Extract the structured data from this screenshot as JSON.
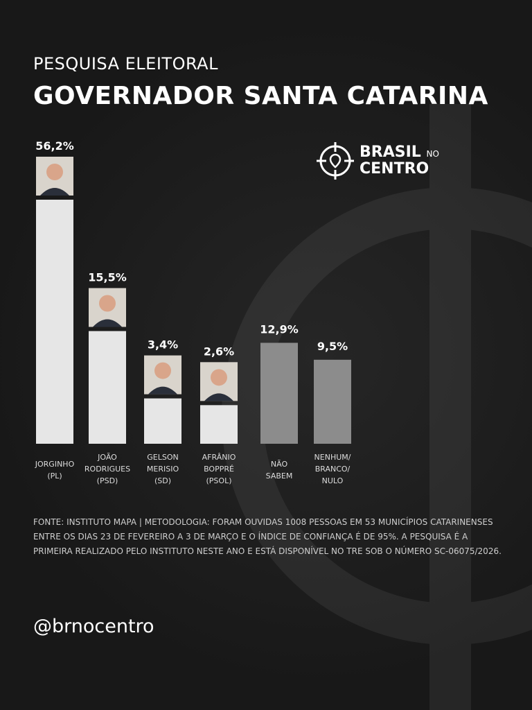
{
  "header": {
    "kicker": "PESQUISA ELEITORAL",
    "title": "GOVERNADOR SANTA CATARINA"
  },
  "logo": {
    "line1": "BRASIL",
    "line1_small": "NO",
    "line2": "CENTRO",
    "icon": "crosshair-map-pin-icon"
  },
  "chart_data": {
    "type": "bar",
    "categories": [
      [
        "JORGINHO",
        "(PL)"
      ],
      [
        "JOÃO",
        "RODRIGUES",
        "(PSD)"
      ],
      [
        "GELSON",
        "MERISIO",
        "(SD)"
      ],
      [
        "AFRÂNIO",
        "BOPPRÉ",
        "(PSOL)"
      ],
      [
        "NÃO",
        "SABEM"
      ],
      [
        "NENHUM/",
        "BRANCO/",
        "NULO"
      ]
    ],
    "values": [
      56.2,
      15.5,
      3.4,
      2.6,
      12.9,
      9.5
    ],
    "data_labels": [
      "56,2%",
      "15,5%",
      "3,4%",
      "2,6%",
      "12,9%",
      "9,5%"
    ],
    "has_photo": [
      true,
      true,
      true,
      true,
      false,
      false
    ],
    "colors": [
      "#e6e6e6",
      "#e6e6e6",
      "#e6e6e6",
      "#e6e6e6",
      "#8c8c8c",
      "#8c8c8c"
    ],
    "unit": "%",
    "grid": false
  },
  "footnote": "FONTE: INSTITUTO MAPA | METODOLOGIA: FORAM OUVIDAS 1008 PESSOAS EM 53 MUNICÍPIOS CATARINENSES ENTRE OS DIAS 23 DE FEVEREIRO A 3 DE MARÇO E O ÍNDICE DE CONFIANÇA É DE 95%. A PESQUISA É A PRIMEIRA REALIZADO PELO INSTITUTO NESTE ANO E ESTÁ DISPONÍVEL NO TRE SOB O NÚMERO SC-06075/2026.",
  "handle": "@brnocentro"
}
